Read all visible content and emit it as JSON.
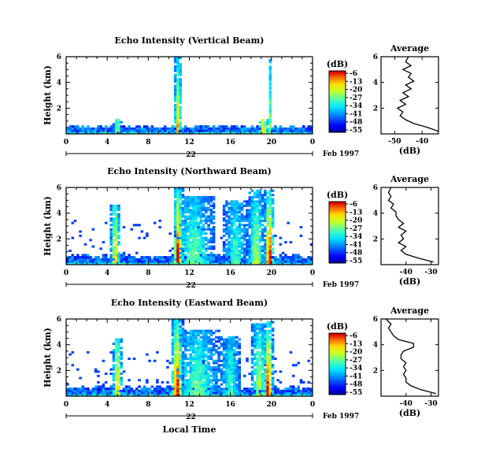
{
  "chart_data": [
    {
      "type": "heatmap",
      "title": "Echo Intensity (Vertical Beam)",
      "ylabel": "Height (km)",
      "xticks": [
        "0",
        "4",
        "8",
        "12",
        "16",
        "20",
        "0"
      ],
      "yticks": [
        "2",
        "4",
        "6"
      ],
      "xlim": [
        0,
        24
      ],
      "ylim": [
        0,
        6
      ],
      "date_label": "22",
      "month_label": "Feb 1997",
      "colorbar": {
        "label": "(dB)",
        "ticks": [
          "-6",
          "-13",
          "-20",
          "-27",
          "-34",
          "-41",
          "-48",
          "-55"
        ],
        "range": [
          -55,
          -6
        ]
      },
      "profile": {
        "title": "Average",
        "xlabel": "(dB)",
        "xticks": [
          "-50",
          "-40"
        ],
        "xlim": [
          -55,
          -34
        ],
        "yticks": [
          "2",
          "4",
          "6"
        ],
        "ylim": [
          0,
          6
        ],
        "points": [
          [
            -34,
            0.2
          ],
          [
            -38,
            0.5
          ],
          [
            -43,
            0.8
          ],
          [
            -46,
            1.1
          ],
          [
            -48,
            1.4
          ],
          [
            -47,
            1.7
          ],
          [
            -49,
            2.0
          ],
          [
            -46,
            2.3
          ],
          [
            -48,
            2.6
          ],
          [
            -45,
            2.9
          ],
          [
            -47,
            3.2
          ],
          [
            -44,
            3.5
          ],
          [
            -46,
            3.8
          ],
          [
            -43,
            4.1
          ],
          [
            -45,
            4.4
          ],
          [
            -44,
            4.7
          ],
          [
            -47,
            5.0
          ],
          [
            -44,
            5.3
          ],
          [
            -46,
            5.6
          ],
          [
            -45,
            6.0
          ]
        ]
      }
    },
    {
      "type": "heatmap",
      "title": "Echo Intensity (Northward Beam)",
      "ylabel": "Height (km)",
      "xticks": [
        "0",
        "4",
        "8",
        "12",
        "16",
        "20",
        "0"
      ],
      "yticks": [
        "2",
        "4",
        "6"
      ],
      "xlim": [
        0,
        24
      ],
      "ylim": [
        0,
        6
      ],
      "date_label": "22",
      "month_label": "Feb 1997",
      "colorbar": {
        "label": "(dB)",
        "ticks": [
          "-6",
          "-13",
          "-20",
          "-27",
          "-34",
          "-41",
          "-48",
          "-55"
        ],
        "range": [
          -55,
          -6
        ]
      },
      "profile": {
        "title": "Average",
        "xlabel": "(dB)",
        "xticks": [
          "-40",
          "-30"
        ],
        "xlim": [
          -50,
          -27
        ],
        "yticks": [
          "2",
          "4",
          "6"
        ],
        "ylim": [
          0,
          6
        ],
        "points": [
          [
            -29,
            0.2
          ],
          [
            -35,
            0.5
          ],
          [
            -40,
            0.8
          ],
          [
            -42,
            1.1
          ],
          [
            -40,
            1.4
          ],
          [
            -43,
            1.7
          ],
          [
            -41,
            2.0
          ],
          [
            -42,
            2.3
          ],
          [
            -40,
            2.6
          ],
          [
            -43,
            2.9
          ],
          [
            -41,
            3.2
          ],
          [
            -43,
            3.5
          ],
          [
            -44,
            3.8
          ],
          [
            -44,
            4.1
          ],
          [
            -46,
            4.4
          ],
          [
            -45,
            4.7
          ],
          [
            -47,
            5.0
          ],
          [
            -46,
            5.3
          ],
          [
            -47,
            5.6
          ],
          [
            -46,
            6.0
          ]
        ]
      }
    },
    {
      "type": "heatmap",
      "title": "Echo Intensity (Eastward Beam)",
      "ylabel": "Height (km)",
      "xlabel": "Local Time",
      "xticks": [
        "0",
        "4",
        "8",
        "12",
        "16",
        "20",
        "0"
      ],
      "yticks": [
        "2",
        "4",
        "6"
      ],
      "xlim": [
        0,
        24
      ],
      "ylim": [
        0,
        6
      ],
      "date_label": "22",
      "month_label": "Feb 1997",
      "colorbar": {
        "label": "(dB)",
        "ticks": [
          "-6",
          "-13",
          "-20",
          "-27",
          "-34",
          "-41",
          "-48",
          "-55"
        ],
        "range": [
          -55,
          -6
        ]
      },
      "profile": {
        "title": "Average",
        "xlabel": "(dB)",
        "xticks": [
          "-40",
          "-30"
        ],
        "xlim": [
          -50,
          -27
        ],
        "yticks": [
          "2",
          "4",
          "6"
        ],
        "ylim": [
          0,
          6
        ],
        "points": [
          [
            -28,
            0.2
          ],
          [
            -34,
            0.5
          ],
          [
            -38,
            0.8
          ],
          [
            -40,
            1.1
          ],
          [
            -40,
            1.4
          ],
          [
            -41,
            1.7
          ],
          [
            -40,
            2.0
          ],
          [
            -41,
            2.3
          ],
          [
            -40,
            2.6
          ],
          [
            -42,
            2.9
          ],
          [
            -42,
            3.2
          ],
          [
            -41,
            3.5
          ],
          [
            -37,
            3.8
          ],
          [
            -37,
            4.1
          ],
          [
            -43,
            4.4
          ],
          [
            -45,
            4.7
          ],
          [
            -46,
            5.0
          ],
          [
            -47,
            5.3
          ],
          [
            -46,
            5.6
          ],
          [
            -48,
            6.0
          ]
        ]
      }
    }
  ]
}
